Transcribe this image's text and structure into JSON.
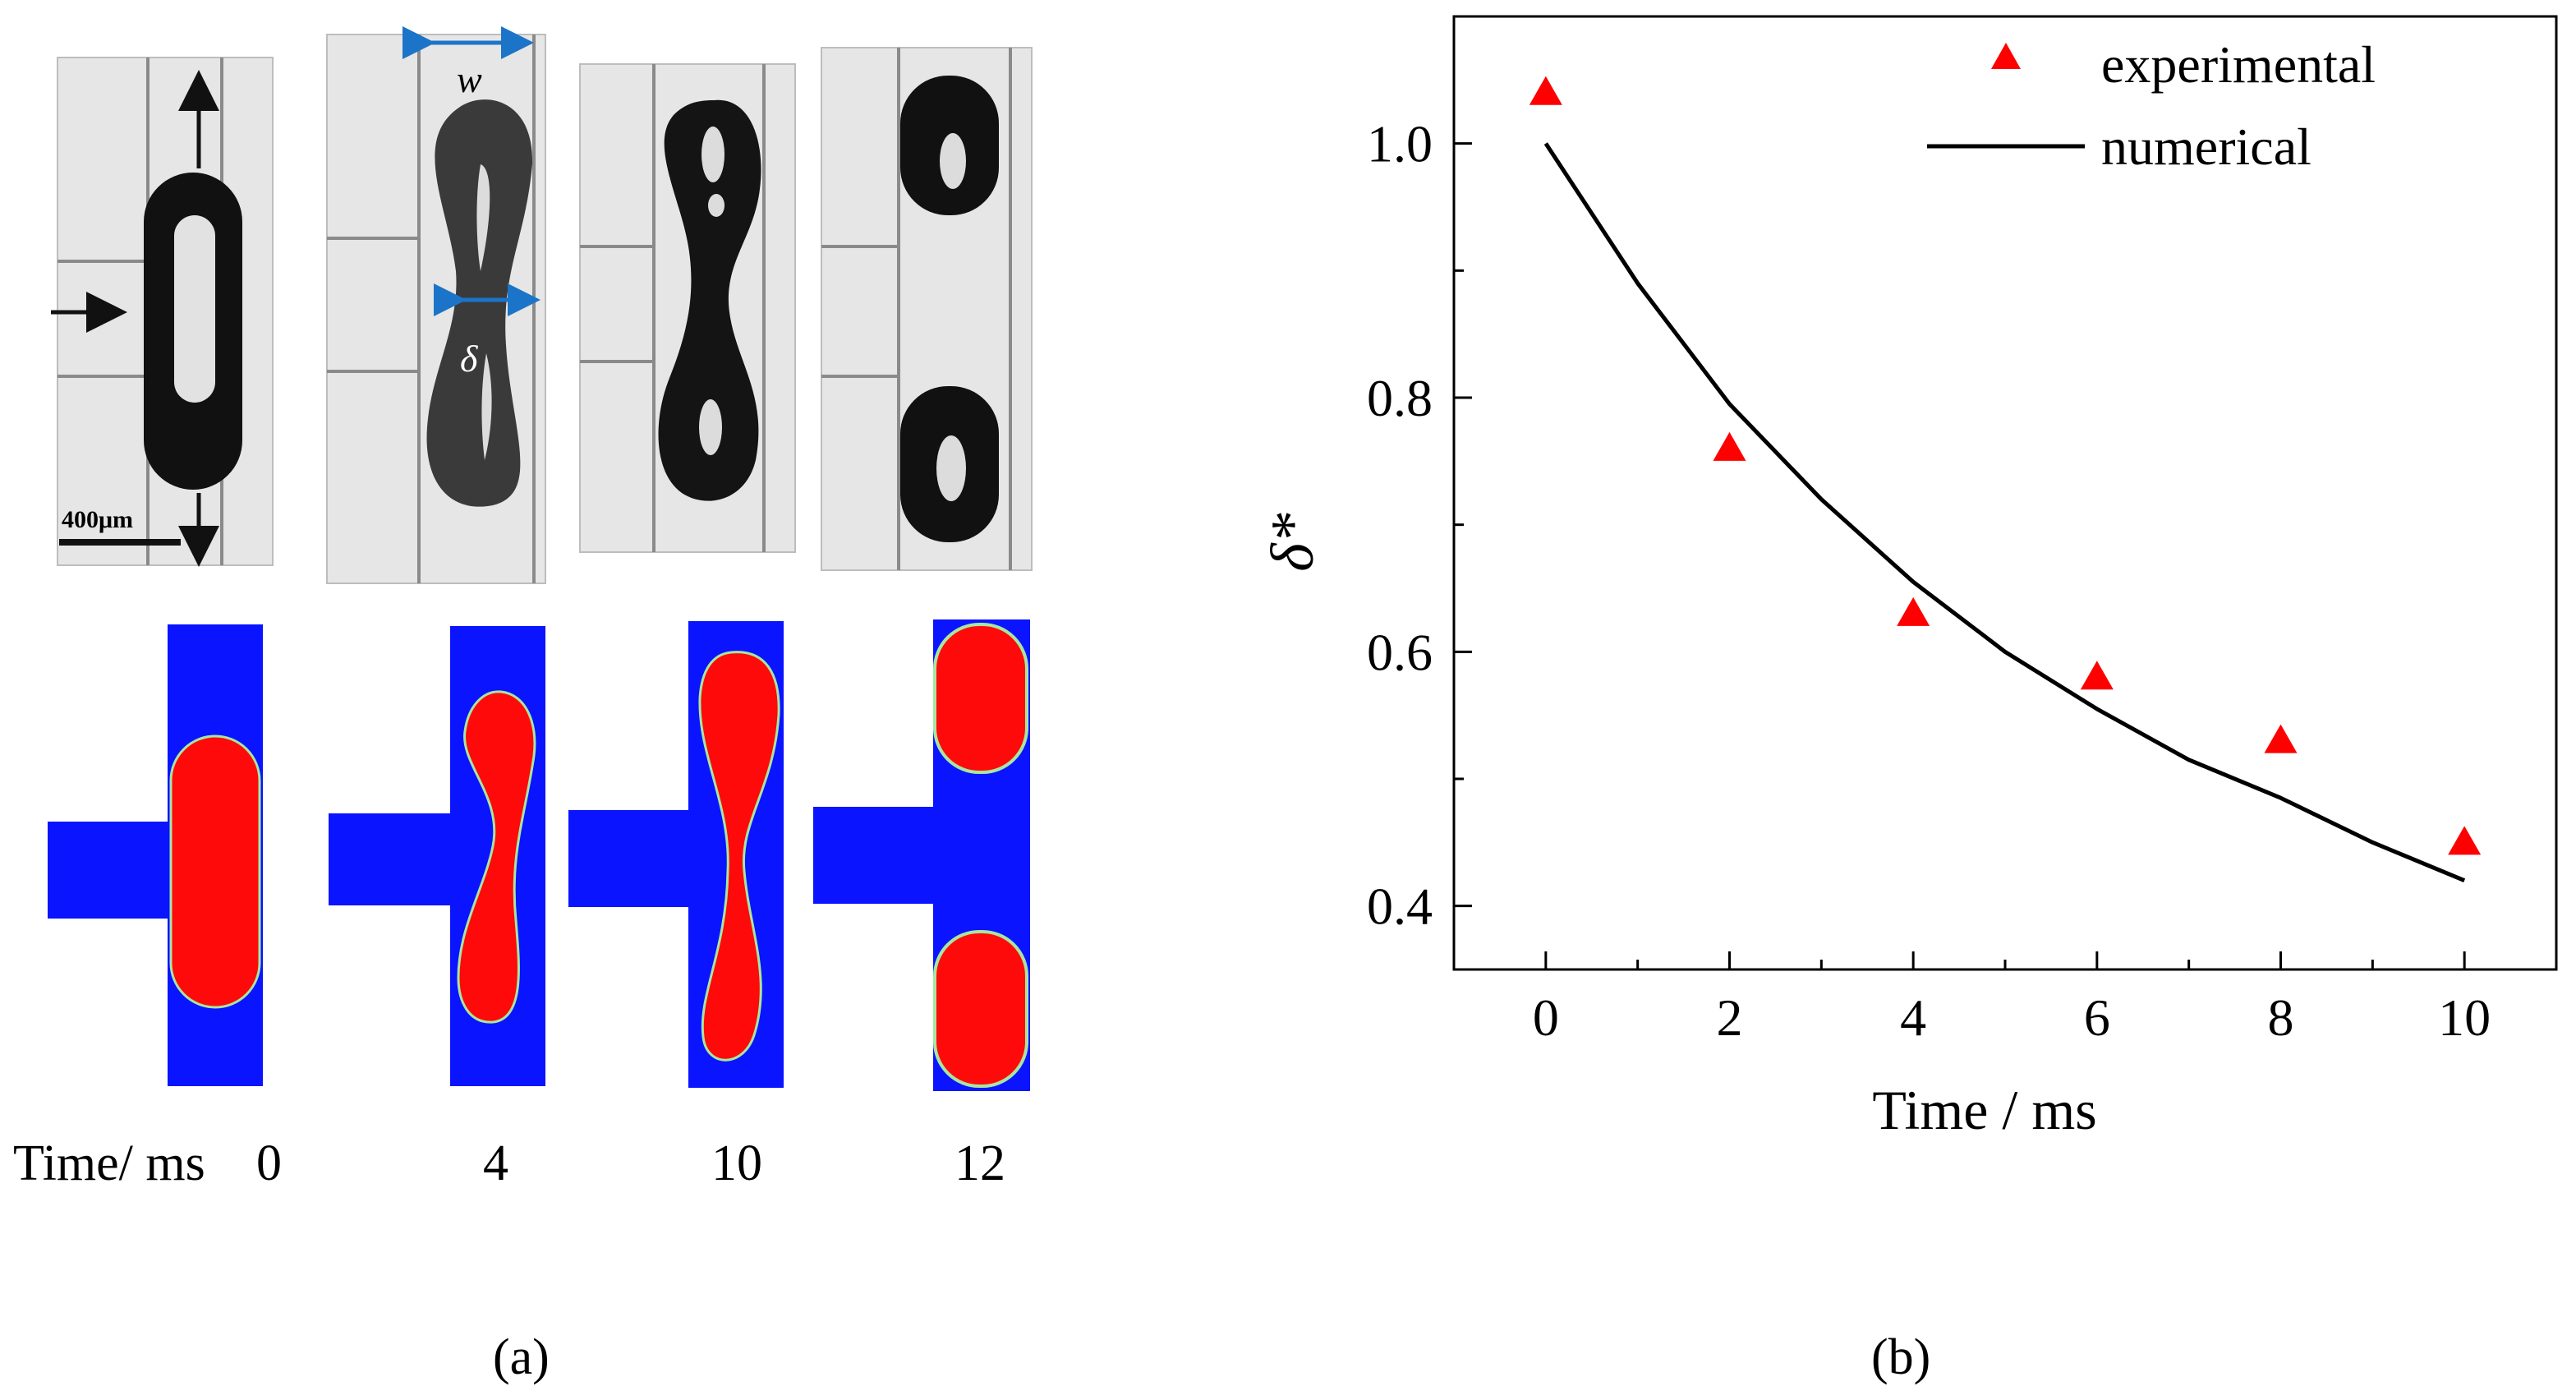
{
  "panel_a": {
    "scale_bar_label": "400μm",
    "dimension_labels": {
      "width": "w",
      "neck": "δ"
    },
    "time_axis_label": "Time/ ms",
    "frame_times": [
      "0",
      "4",
      "10",
      "12"
    ],
    "caption": "(a)"
  },
  "panel_b": {
    "caption": "(b)"
  },
  "colors": {
    "experimental_marker": "#ff0000",
    "numerical_line": "#000000",
    "sim_background": "#0a14ff",
    "sim_droplet": "#ff0a0a",
    "photo_background": "#e6e6e6",
    "photo_droplet": "#111111",
    "dimension_arrows": "#1b74c8"
  },
  "chart_data": {
    "type": "scatter",
    "title": "",
    "xlabel": "Time / ms",
    "ylabel": "δ*",
    "xlim": [
      -1,
      11
    ],
    "ylim": [
      0.35,
      1.1
    ],
    "xticks": [
      0,
      2,
      4,
      6,
      8,
      10
    ],
    "yticks": [
      0.4,
      0.6,
      0.8,
      1.0
    ],
    "xtick_labels": [
      "0",
      "2",
      "4",
      "6",
      "8",
      "10"
    ],
    "ytick_labels": [
      "0.4",
      "0.6",
      "0.8",
      "1.0"
    ],
    "legend_position": "top-right",
    "grid": false,
    "series": [
      {
        "name": "experimental",
        "kind": "marker-triangle",
        "x": [
          0,
          2,
          4,
          6,
          8,
          10
        ],
        "y": [
          1.04,
          0.76,
          0.63,
          0.58,
          0.53,
          0.45
        ]
      },
      {
        "name": "numerical",
        "kind": "line",
        "x": [
          0,
          1,
          2,
          3,
          4,
          5,
          6,
          7,
          8,
          9,
          10
        ],
        "y": [
          1.0,
          0.89,
          0.795,
          0.72,
          0.655,
          0.6,
          0.555,
          0.515,
          0.485,
          0.45,
          0.42
        ]
      }
    ]
  }
}
